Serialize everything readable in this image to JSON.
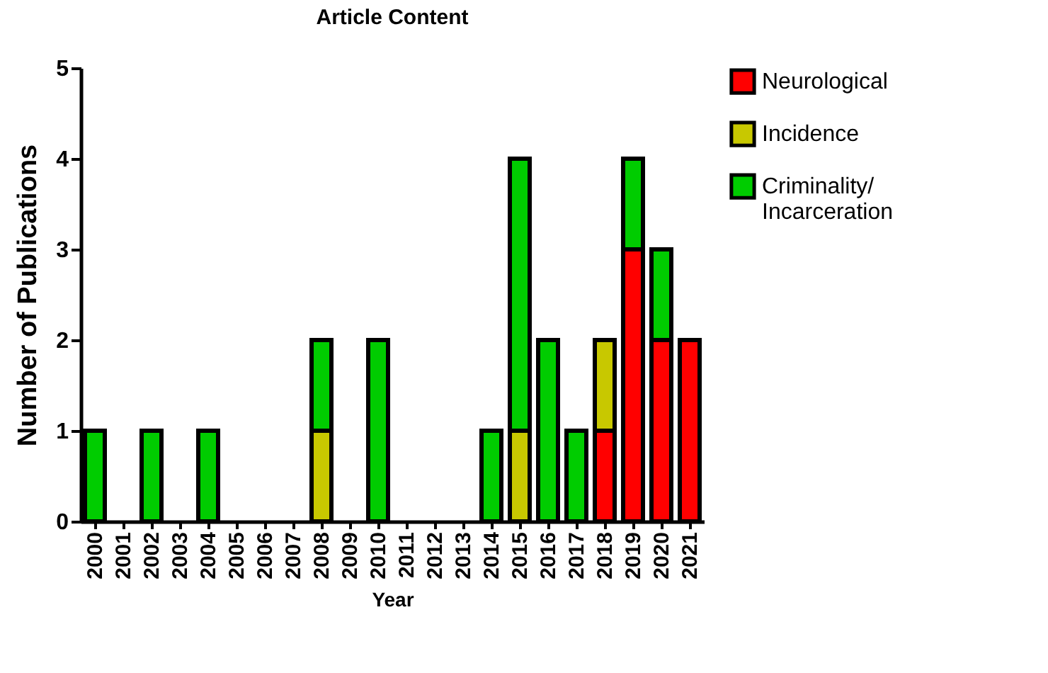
{
  "chart_data": {
    "type": "bar",
    "title": "Article Content",
    "xlabel": "Year",
    "ylabel": "Number of Publications",
    "stacked": true,
    "legend": "right",
    "grid": false,
    "categories": [
      "2000",
      "2001",
      "2002",
      "2003",
      "2004",
      "2005",
      "2006",
      "2007",
      "2008",
      "2009",
      "2010",
      "2011",
      "2012",
      "2013",
      "2014",
      "2015",
      "2016",
      "2017",
      "2018",
      "2019",
      "2020",
      "2021"
    ],
    "ylim": [
      0,
      5
    ],
    "yticks": [
      0,
      1,
      2,
      3,
      4,
      5
    ],
    "series": [
      {
        "name": "Neurological",
        "color": "#ff0000",
        "values": [
          null,
          null,
          null,
          null,
          null,
          null,
          null,
          null,
          null,
          null,
          null,
          null,
          null,
          null,
          null,
          null,
          null,
          null,
          1,
          3,
          2,
          2
        ]
      },
      {
        "name": "Incidence",
        "color": "#c8c800",
        "values": [
          null,
          null,
          null,
          null,
          null,
          null,
          null,
          null,
          1,
          null,
          null,
          null,
          null,
          null,
          null,
          1,
          null,
          null,
          1,
          null,
          null,
          null
        ]
      },
      {
        "name": "Criminality/ Incarceration",
        "color": "#00cc00",
        "values": [
          1,
          null,
          1,
          null,
          1,
          null,
          null,
          null,
          1,
          null,
          2,
          null,
          null,
          null,
          1,
          3,
          2,
          1,
          null,
          1,
          1,
          null
        ]
      }
    ]
  }
}
